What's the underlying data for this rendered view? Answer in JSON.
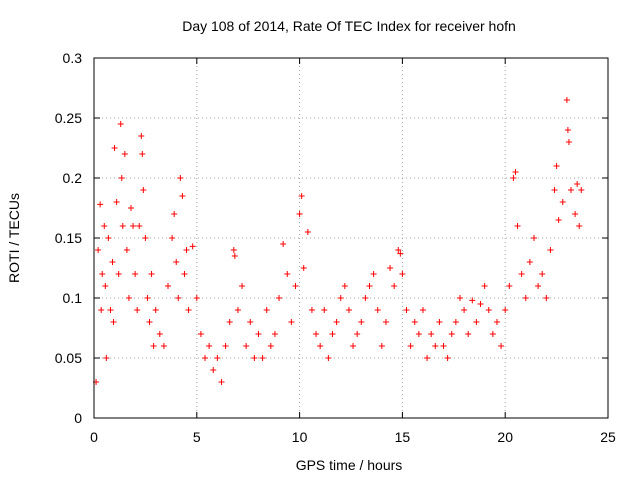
{
  "chart_data": {
    "type": "scatter",
    "title": "Day 108 of 2014, Rate Of TEC Index for receiver hofn",
    "xlabel": "GPS time / hours",
    "ylabel": "ROTI / TECUs",
    "xlim": [
      0,
      25
    ],
    "ylim": [
      0,
      0.3
    ],
    "x_ticks": [
      "0",
      "5",
      "10",
      "15",
      "20",
      "25"
    ],
    "y_ticks": [
      "0",
      "0.05",
      "0.1",
      "0.15",
      "0.2",
      "0.25",
      "0.3"
    ],
    "grid": true,
    "marker": "+",
    "marker_color": "#ff0000",
    "series": [
      {
        "points": [
          [
            0.1,
            0.03
          ],
          [
            0.2,
            0.14
          ],
          [
            0.3,
            0.178
          ],
          [
            0.35,
            0.09
          ],
          [
            0.4,
            0.12
          ],
          [
            0.5,
            0.16
          ],
          [
            0.55,
            0.11
          ],
          [
            0.6,
            0.05
          ],
          [
            0.7,
            0.15
          ],
          [
            0.8,
            0.09
          ],
          [
            0.9,
            0.13
          ],
          [
            0.95,
            0.08
          ],
          [
            1.0,
            0.225
          ],
          [
            1.1,
            0.18
          ],
          [
            1.2,
            0.12
          ],
          [
            1.3,
            0.245
          ],
          [
            1.35,
            0.2
          ],
          [
            1.4,
            0.16
          ],
          [
            1.5,
            0.22
          ],
          [
            1.6,
            0.14
          ],
          [
            1.7,
            0.1
          ],
          [
            1.8,
            0.175
          ],
          [
            1.9,
            0.16
          ],
          [
            2.0,
            0.12
          ],
          [
            2.1,
            0.09
          ],
          [
            2.2,
            0.16
          ],
          [
            2.3,
            0.235
          ],
          [
            2.35,
            0.22
          ],
          [
            2.4,
            0.19
          ],
          [
            2.5,
            0.15
          ],
          [
            2.6,
            0.1
          ],
          [
            2.7,
            0.08
          ],
          [
            2.8,
            0.12
          ],
          [
            2.9,
            0.06
          ],
          [
            3.0,
            0.09
          ],
          [
            3.2,
            0.07
          ],
          [
            3.4,
            0.06
          ],
          [
            3.6,
            0.11
          ],
          [
            3.8,
            0.15
          ],
          [
            3.9,
            0.17
          ],
          [
            4.0,
            0.13
          ],
          [
            4.1,
            0.1
          ],
          [
            4.2,
            0.2
          ],
          [
            4.3,
            0.185
          ],
          [
            4.4,
            0.12
          ],
          [
            4.5,
            0.14
          ],
          [
            4.6,
            0.09
          ],
          [
            4.8,
            0.143
          ],
          [
            5.0,
            0.1
          ],
          [
            5.2,
            0.07
          ],
          [
            5.4,
            0.05
          ],
          [
            5.6,
            0.06
          ],
          [
            5.8,
            0.04
          ],
          [
            6.0,
            0.05
          ],
          [
            6.2,
            0.03
          ],
          [
            6.4,
            0.06
          ],
          [
            6.6,
            0.08
          ],
          [
            6.8,
            0.14
          ],
          [
            6.85,
            0.135
          ],
          [
            7.0,
            0.09
          ],
          [
            7.2,
            0.11
          ],
          [
            7.4,
            0.06
          ],
          [
            7.6,
            0.08
          ],
          [
            7.8,
            0.05
          ],
          [
            8.0,
            0.07
          ],
          [
            8.2,
            0.05
          ],
          [
            8.4,
            0.09
          ],
          [
            8.6,
            0.06
          ],
          [
            8.8,
            0.07
          ],
          [
            9.0,
            0.1
          ],
          [
            9.2,
            0.145
          ],
          [
            9.4,
            0.12
          ],
          [
            9.6,
            0.08
          ],
          [
            9.8,
            0.11
          ],
          [
            10.0,
            0.17
          ],
          [
            10.1,
            0.185
          ],
          [
            10.2,
            0.125
          ],
          [
            10.4,
            0.155
          ],
          [
            10.6,
            0.09
          ],
          [
            10.8,
            0.07
          ],
          [
            11.0,
            0.06
          ],
          [
            11.2,
            0.09
          ],
          [
            11.4,
            0.05
          ],
          [
            11.6,
            0.07
          ],
          [
            11.8,
            0.08
          ],
          [
            12.0,
            0.1
          ],
          [
            12.2,
            0.11
          ],
          [
            12.4,
            0.09
          ],
          [
            12.6,
            0.06
          ],
          [
            12.8,
            0.07
          ],
          [
            13.0,
            0.08
          ],
          [
            13.2,
            0.1
          ],
          [
            13.4,
            0.11
          ],
          [
            13.6,
            0.12
          ],
          [
            13.8,
            0.09
          ],
          [
            14.0,
            0.06
          ],
          [
            14.2,
            0.08
          ],
          [
            14.4,
            0.125
          ],
          [
            14.6,
            0.11
          ],
          [
            14.8,
            0.14
          ],
          [
            14.9,
            0.137
          ],
          [
            15.0,
            0.12
          ],
          [
            15.2,
            0.09
          ],
          [
            15.4,
            0.06
          ],
          [
            15.6,
            0.08
          ],
          [
            15.8,
            0.07
          ],
          [
            16.0,
            0.09
          ],
          [
            16.2,
            0.05
          ],
          [
            16.4,
            0.07
          ],
          [
            16.6,
            0.06
          ],
          [
            16.8,
            0.08
          ],
          [
            17.0,
            0.06
          ],
          [
            17.2,
            0.05
          ],
          [
            17.4,
            0.07
          ],
          [
            17.6,
            0.08
          ],
          [
            17.8,
            0.1
          ],
          [
            18.0,
            0.09
          ],
          [
            18.2,
            0.07
          ],
          [
            18.4,
            0.098
          ],
          [
            18.6,
            0.08
          ],
          [
            18.8,
            0.095
          ],
          [
            19.0,
            0.11
          ],
          [
            19.2,
            0.09
          ],
          [
            19.4,
            0.07
          ],
          [
            19.6,
            0.08
          ],
          [
            19.8,
            0.06
          ],
          [
            20.0,
            0.09
          ],
          [
            20.2,
            0.11
          ],
          [
            20.4,
            0.2
          ],
          [
            20.5,
            0.205
          ],
          [
            20.6,
            0.16
          ],
          [
            20.8,
            0.12
          ],
          [
            21.0,
            0.1
          ],
          [
            21.2,
            0.13
          ],
          [
            21.4,
            0.15
          ],
          [
            21.6,
            0.11
          ],
          [
            21.8,
            0.12
          ],
          [
            22.0,
            0.1
          ],
          [
            22.2,
            0.14
          ],
          [
            22.4,
            0.19
          ],
          [
            22.5,
            0.21
          ],
          [
            22.6,
            0.165
          ],
          [
            22.8,
            0.18
          ],
          [
            23.0,
            0.265
          ],
          [
            23.05,
            0.24
          ],
          [
            23.1,
            0.23
          ],
          [
            23.2,
            0.19
          ],
          [
            23.4,
            0.17
          ],
          [
            23.5,
            0.195
          ],
          [
            23.6,
            0.16
          ],
          [
            23.7,
            0.19
          ]
        ]
      }
    ]
  }
}
